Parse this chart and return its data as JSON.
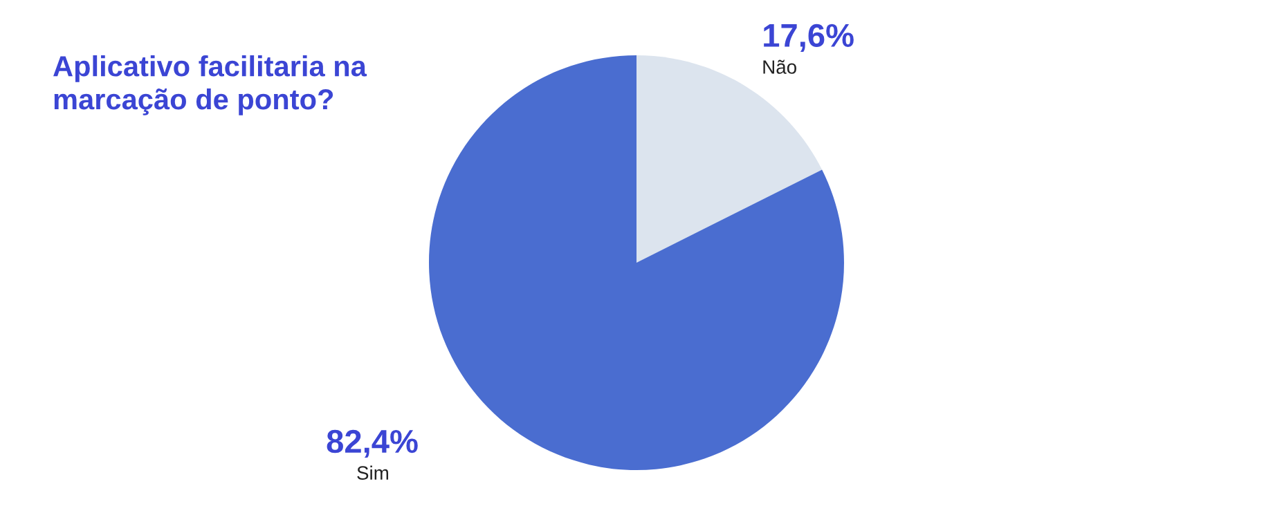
{
  "chart_data": {
    "type": "pie",
    "title": "Aplicativo facilitaria na\nmarcação de ponto?",
    "categories": [
      "Não",
      "Sim"
    ],
    "values": [
      17.6,
      82.4
    ],
    "colors": [
      "#dce4ee",
      "#4a6dd0"
    ],
    "value_labels": [
      "17,6%",
      "82,4%"
    ]
  }
}
